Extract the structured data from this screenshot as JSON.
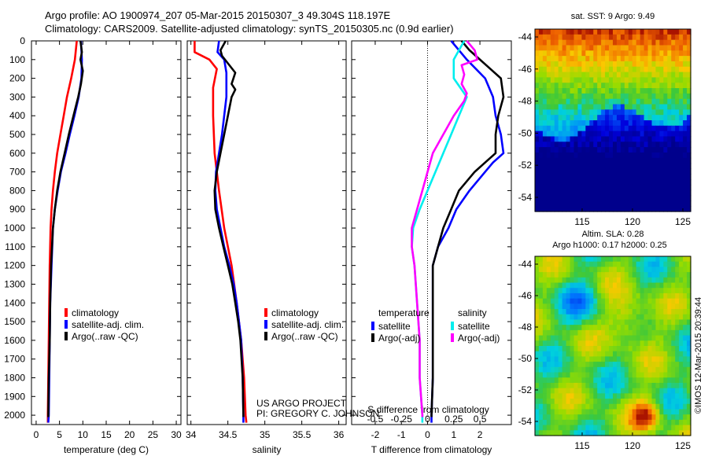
{
  "header": {
    "line1": "Argo profile: AO 1900974_207 05-Mar-2015 20150307_3 49.304S 118.197E",
    "line2": "Climatology: CARS2009. Satellite-adjusted climatology: synTS_20150305.nc (0.9d earlier)"
  },
  "colors": {
    "climatology": "#ff0000",
    "satellite": "#0000ff",
    "argo": "#000000",
    "cyan": "#00eeee",
    "magenta": "#ff00ff"
  },
  "chart_data": [
    {
      "type": "line",
      "xlabel": "temperature (deg C)",
      "xlim": [
        -1,
        31
      ],
      "xticks": [
        "0",
        "5",
        "10",
        "15",
        "20",
        "25",
        "30"
      ],
      "ylim": [
        2050,
        0
      ],
      "yticks": [
        "0",
        "100",
        "200",
        "300",
        "400",
        "500",
        "600",
        "700",
        "800",
        "900",
        "1000",
        "1100",
        "1200",
        "1300",
        "1400",
        "1500",
        "1600",
        "1700",
        "1800",
        "1900",
        "2000"
      ],
      "legend": [
        "climatology",
        "satellite-adj. clim.",
        "Argo(..raw -QC)"
      ],
      "series": [
        {
          "name": "climatology",
          "color": "#ff0000",
          "points": [
            [
              8.7,
              0
            ],
            [
              8.3,
              100
            ],
            [
              7.5,
              200
            ],
            [
              6.6,
              300
            ],
            [
              5.9,
              400
            ],
            [
              5.2,
              500
            ],
            [
              4.5,
              600
            ],
            [
              4.0,
              700
            ],
            [
              3.6,
              800
            ],
            [
              3.3,
              900
            ],
            [
              3.1,
              1000
            ],
            [
              2.9,
              1200
            ],
            [
              2.8,
              1400
            ],
            [
              2.7,
              1600
            ],
            [
              2.6,
              1800
            ],
            [
              2.5,
              2000
            ],
            [
              2.5,
              2040
            ]
          ]
        },
        {
          "name": "satellite-adj. clim.",
          "color": "#0000ff",
          "points": [
            [
              9.6,
              0
            ],
            [
              9.8,
              100
            ],
            [
              9.7,
              200
            ],
            [
              9.1,
              300
            ],
            [
              8.2,
              400
            ],
            [
              7.2,
              500
            ],
            [
              6.3,
              600
            ],
            [
              5.3,
              700
            ],
            [
              4.6,
              800
            ],
            [
              4.0,
              900
            ],
            [
              3.6,
              1000
            ],
            [
              3.3,
              1200
            ],
            [
              3.0,
              1400
            ],
            [
              2.9,
              1600
            ],
            [
              2.8,
              1800
            ],
            [
              2.7,
              2000
            ],
            [
              2.6,
              2040
            ]
          ]
        },
        {
          "name": "Argo(..raw -QC)",
          "color": "#000000",
          "points": [
            [
              9.5,
              0
            ],
            [
              9.8,
              60
            ],
            [
              9.5,
              100
            ],
            [
              10.0,
              160
            ],
            [
              9.6,
              230
            ],
            [
              9.0,
              300
            ],
            [
              8.0,
              400
            ],
            [
              7.0,
              500
            ],
            [
              6.1,
              600
            ],
            [
              5.2,
              700
            ],
            [
              4.5,
              800
            ],
            [
              4.0,
              900
            ],
            [
              3.6,
              1000
            ],
            [
              3.2,
              1200
            ],
            [
              3.0,
              1400
            ],
            [
              2.9,
              1600
            ],
            [
              2.7,
              1800
            ],
            [
              2.6,
              2000
            ],
            [
              2.6,
              2010
            ]
          ]
        }
      ]
    },
    {
      "type": "line",
      "xlabel": "salinity",
      "xlim": [
        33.95,
        36.1
      ],
      "xticks": [
        "34",
        "34.5",
        "35",
        "35.5",
        "36"
      ],
      "ylim": [
        2050,
        0
      ],
      "legend": [
        "climatology",
        "satellite-adj. clim.",
        "Argo(..raw -QC)"
      ],
      "series": [
        {
          "name": "climatology",
          "color": "#ff0000",
          "points": [
            [
              34.05,
              0
            ],
            [
              34.05,
              60
            ],
            [
              34.25,
              100
            ],
            [
              34.35,
              150
            ],
            [
              34.3,
              250
            ],
            [
              34.3,
              400
            ],
            [
              34.32,
              600
            ],
            [
              34.38,
              800
            ],
            [
              34.45,
              1000
            ],
            [
              34.55,
              1200
            ],
            [
              34.62,
              1400
            ],
            [
              34.68,
              1600
            ],
            [
              34.72,
              1800
            ],
            [
              34.74,
              2000
            ],
            [
              34.75,
              2040
            ]
          ]
        },
        {
          "name": "satellite-adj. clim.",
          "color": "#0000ff",
          "points": [
            [
              34.38,
              0
            ],
            [
              34.36,
              60
            ],
            [
              34.45,
              100
            ],
            [
              34.48,
              170
            ],
            [
              34.48,
              300
            ],
            [
              34.45,
              400
            ],
            [
              34.42,
              500
            ],
            [
              34.38,
              600
            ],
            [
              34.34,
              700
            ],
            [
              34.33,
              800
            ],
            [
              34.35,
              900
            ],
            [
              34.4,
              1000
            ],
            [
              34.45,
              1100
            ],
            [
              34.52,
              1200
            ],
            [
              34.58,
              1300
            ],
            [
              34.62,
              1400
            ],
            [
              34.65,
              1500
            ],
            [
              34.68,
              1600
            ],
            [
              34.7,
              1800
            ],
            [
              34.71,
              2000
            ],
            [
              34.71,
              2040
            ]
          ]
        },
        {
          "name": "Argo(..raw -QC)",
          "color": "#000000",
          "points": [
            [
              34.47,
              0
            ],
            [
              34.4,
              50
            ],
            [
              34.42,
              80
            ],
            [
              34.6,
              170
            ],
            [
              34.55,
              230
            ],
            [
              34.6,
              260
            ],
            [
              34.55,
              300
            ],
            [
              34.5,
              400
            ],
            [
              34.45,
              500
            ],
            [
              34.4,
              600
            ],
            [
              34.35,
              700
            ],
            [
              34.32,
              800
            ],
            [
              34.33,
              900
            ],
            [
              34.38,
              1000
            ],
            [
              34.44,
              1100
            ],
            [
              34.5,
              1200
            ],
            [
              34.56,
              1300
            ],
            [
              34.6,
              1400
            ],
            [
              34.64,
              1500
            ],
            [
              34.67,
              1600
            ],
            [
              34.7,
              1800
            ],
            [
              34.71,
              2000
            ],
            [
              34.71,
              2010
            ]
          ]
        }
      ]
    },
    {
      "type": "line",
      "xlabel": "T difference from climatology",
      "xlabel2": "S difference from climatology",
      "xlim": [
        -2.9,
        3.2
      ],
      "xticks": [
        "-2",
        "-1",
        "0",
        "1",
        "2"
      ],
      "xticks2": [
        "-0.5",
        "-0.25",
        "0",
        "0.25",
        "0.5"
      ],
      "ylim": [
        2050,
        0
      ],
      "legend_temperature": [
        "temperature",
        "satellite",
        "Argo(-adj)"
      ],
      "legend_salinity": [
        "salinity",
        "satellite",
        "Argo(-adj)"
      ],
      "series": [
        {
          "name": "satellite",
          "color": "#0000ff",
          "points": [
            [
              0.9,
              0
            ],
            [
              1.5,
              100
            ],
            [
              2.2,
              200
            ],
            [
              2.5,
              300
            ],
            [
              2.6,
              400
            ],
            [
              2.8,
              500
            ],
            [
              2.9,
              600
            ],
            [
              2.5,
              650
            ],
            [
              2.2,
              700
            ],
            [
              1.6,
              800
            ],
            [
              1.1,
              900
            ],
            [
              0.8,
              1000
            ],
            [
              0.4,
              1100
            ],
            [
              0.2,
              1200
            ],
            [
              0.2,
              1400
            ],
            [
              0.2,
              1600
            ],
            [
              0.2,
              1800
            ],
            [
              0.15,
              2000
            ],
            [
              0.15,
              2040
            ]
          ]
        },
        {
          "name": "Argo(-adj)",
          "color": "#000000",
          "points": [
            [
              1.3,
              0
            ],
            [
              1.6,
              50
            ],
            [
              2.4,
              150
            ],
            [
              2.8,
              200
            ],
            [
              2.9,
              300
            ],
            [
              2.7,
              400
            ],
            [
              2.6,
              500
            ],
            [
              2.6,
              600
            ],
            [
              2.2,
              650
            ],
            [
              1.8,
              700
            ],
            [
              1.2,
              800
            ],
            [
              0.9,
              900
            ],
            [
              0.6,
              1000
            ],
            [
              0.4,
              1100
            ],
            [
              0.2,
              1200
            ],
            [
              0.2,
              1400
            ],
            [
              0.2,
              1600
            ],
            [
              0.2,
              1800
            ],
            [
              0.15,
              2000
            ],
            [
              0.15,
              2010
            ]
          ]
        },
        {
          "name": "satellite",
          "color": "#00eeee",
          "points": [
            [
              1.4,
              0
            ],
            [
              1.2,
              50
            ],
            [
              1.0,
              100
            ],
            [
              1.0,
              200
            ],
            [
              1.5,
              300
            ],
            [
              1.2,
              400
            ],
            [
              0.9,
              500
            ],
            [
              0.6,
              600
            ],
            [
              0.3,
              700
            ],
            [
              0.0,
              800
            ],
            [
              -0.3,
              900
            ],
            [
              -0.55,
              1000
            ],
            [
              -0.6,
              1100
            ],
            [
              -0.5,
              1200
            ],
            [
              -0.4,
              1400
            ],
            [
              -0.3,
              1600
            ],
            [
              -0.3,
              1800
            ],
            [
              -0.2,
              2000
            ],
            [
              -0.2,
              2040
            ]
          ]
        },
        {
          "name": "Argo(-adj)",
          "color": "#ff00ff",
          "points": [
            [
              1.5,
              0
            ],
            [
              1.8,
              50
            ],
            [
              1.9,
              100
            ],
            [
              1.3,
              130
            ],
            [
              1.4,
              180
            ],
            [
              1.3,
              230
            ],
            [
              1.5,
              280
            ],
            [
              1.4,
              320
            ],
            [
              1.0,
              400
            ],
            [
              0.6,
              500
            ],
            [
              0.2,
              600
            ],
            [
              0.0,
              700
            ],
            [
              -0.2,
              800
            ],
            [
              -0.4,
              900
            ],
            [
              -0.6,
              1000
            ],
            [
              -0.6,
              1100
            ],
            [
              -0.5,
              1200
            ],
            [
              -0.4,
              1400
            ],
            [
              -0.3,
              1600
            ],
            [
              -0.3,
              1800
            ],
            [
              -0.2,
              2000
            ],
            [
              -0.2,
              2010
            ]
          ]
        }
      ]
    },
    {
      "type": "heatmap",
      "title": "sat. SST: 9 Argo: 9.49",
      "xticks": [
        "115",
        "120",
        "125"
      ],
      "yticks": [
        "-44",
        "-46",
        "-48",
        "-50",
        "-52",
        "-54"
      ]
    },
    {
      "type": "heatmap",
      "title": "Altim. SLA: 0.28",
      "subtitle": "Argo h1000: 0.17 h2000: 0.25",
      "xticks": [
        "115",
        "120",
        "125"
      ],
      "yticks": [
        "-44",
        "-46",
        "-48",
        "-50",
        "-52",
        "-54"
      ]
    }
  ],
  "annotations": {
    "project_line1": "US ARGO PROJECT",
    "project_line2": "PI: GREGORY C. JOHNSON",
    "credit": "©IMOS 12-Mar-2015 20:39:44"
  }
}
